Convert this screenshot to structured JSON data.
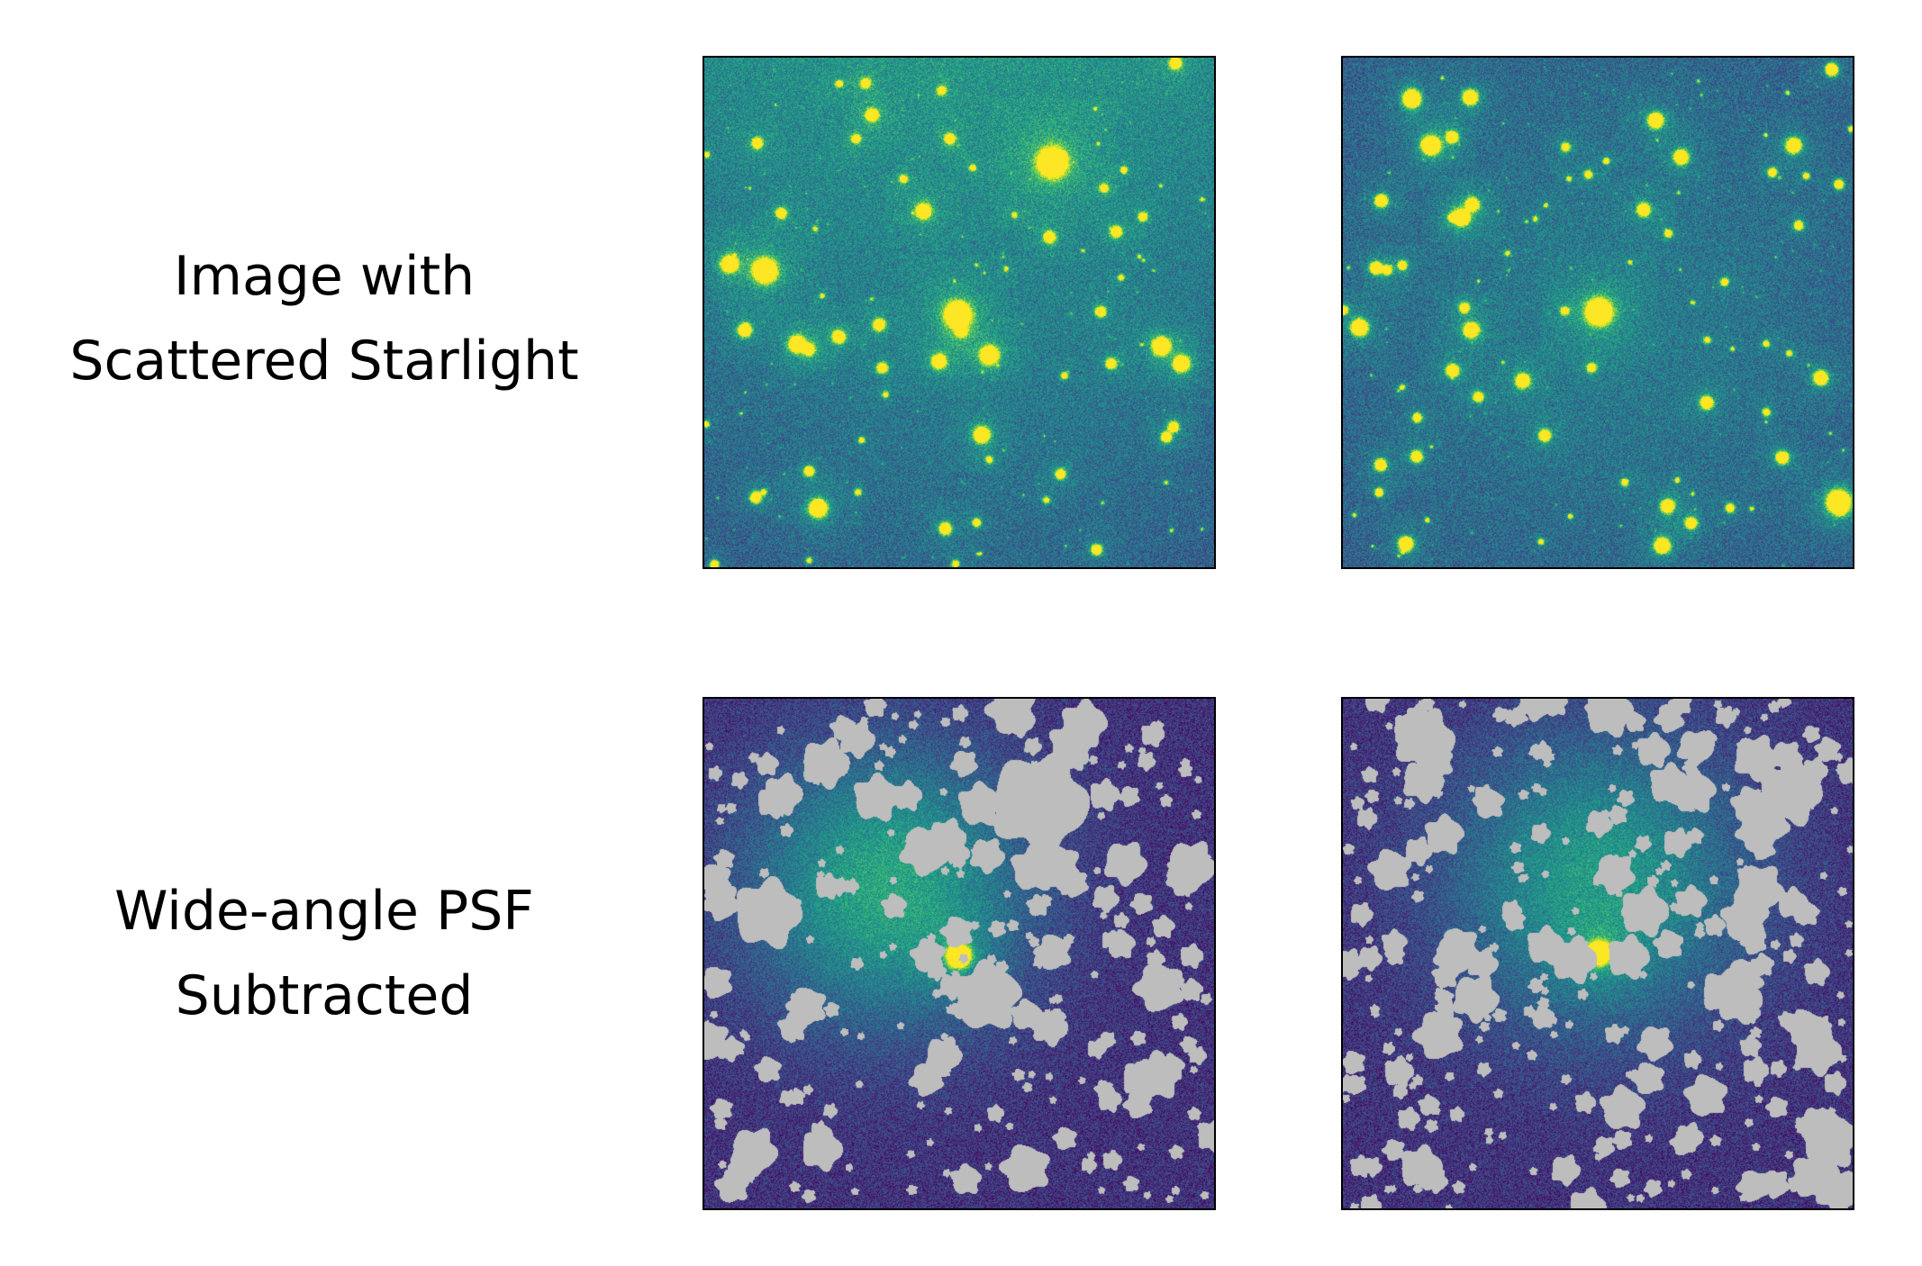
{
  "rows": [
    {
      "label_lines": [
        "Image with",
        "Scattered Starlight"
      ],
      "panel_type": "star field, viridis colormap"
    },
    {
      "label_lines": [
        "Wide-angle PSF",
        "Subtracted"
      ],
      "panel_type": "masked residual, viridis colormap with gray masks"
    }
  ],
  "colors": {
    "background_dark": "#3b2a7a",
    "background_teal": "#1f7a8c",
    "star_core": "#fde725",
    "mask_gray": "#bdbdbd"
  }
}
